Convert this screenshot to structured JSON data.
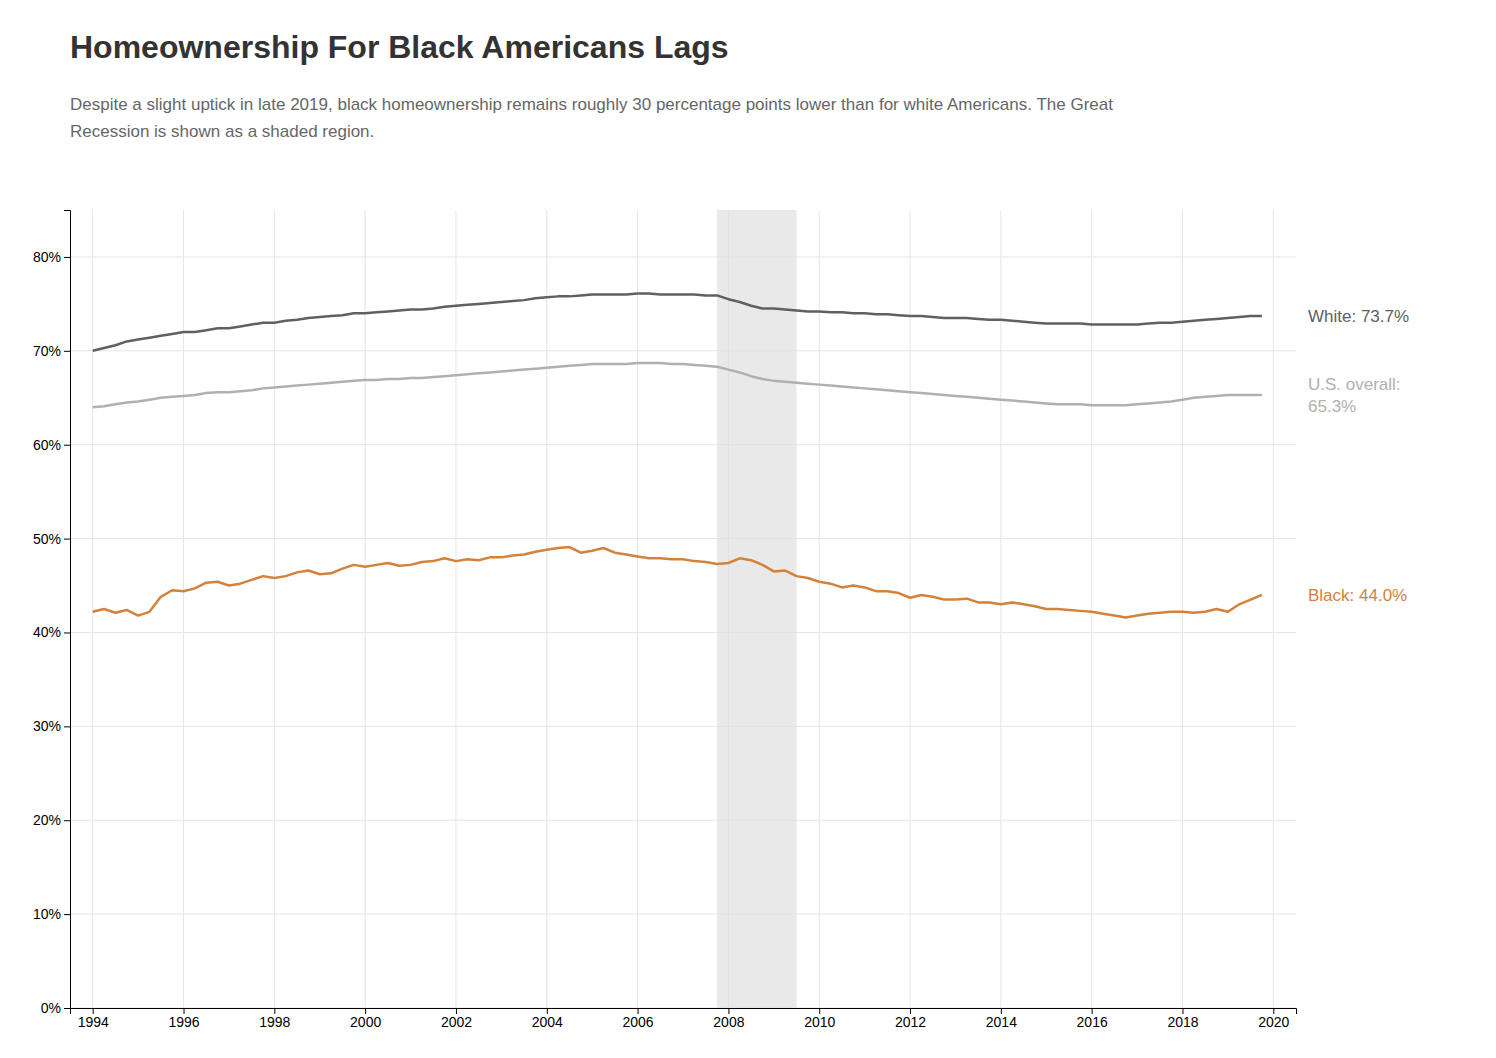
{
  "chart_data": {
    "type": "line",
    "title": "Homeownership For Black Americans Lags",
    "subtitle": "Despite a slight uptick in late 2019, black homeownership remains roughly 30 percentage points lower than for white Americans. The Great\nRecession is shown as a shaded region.",
    "xlim": [
      1993.5,
      2020.5
    ],
    "xticks": [
      1994,
      1996,
      1998,
      2000,
      2002,
      2004,
      2006,
      2008,
      2010,
      2012,
      2014,
      2016,
      2018,
      2020
    ],
    "ylim": [
      0,
      0.85
    ],
    "yticks": [
      {
        "value": 0,
        "label": "0%"
      },
      {
        "value": 0.1,
        "label": "10%"
      },
      {
        "value": 0.2,
        "label": "20%"
      },
      {
        "value": 0.3,
        "label": "30%"
      },
      {
        "value": 0.4,
        "label": "40%"
      },
      {
        "value": 0.5,
        "label": "50%"
      },
      {
        "value": 0.6,
        "label": "60%"
      },
      {
        "value": 0.7,
        "label": "70%"
      },
      {
        "value": 0.8,
        "label": "80%"
      }
    ],
    "grid": true,
    "shaded_regions": [
      {
        "x0": 2007.75,
        "x1": 2009.5,
        "color": "#e0e0e0"
      }
    ],
    "x": [
      1994.0,
      1994.25,
      1994.5,
      1994.75,
      1995.0,
      1995.25,
      1995.5,
      1995.75,
      1996.0,
      1996.25,
      1996.5,
      1996.75,
      1997.0,
      1997.25,
      1997.5,
      1997.75,
      1998.0,
      1998.25,
      1998.5,
      1998.75,
      1999.0,
      1999.25,
      1999.5,
      1999.75,
      2000.0,
      2000.25,
      2000.5,
      2000.75,
      2001.0,
      2001.25,
      2001.5,
      2001.75,
      2002.0,
      2002.25,
      2002.5,
      2002.75,
      2003.0,
      2003.25,
      2003.5,
      2003.75,
      2004.0,
      2004.25,
      2004.5,
      2004.75,
      2005.0,
      2005.25,
      2005.5,
      2005.75,
      2006.0,
      2006.25,
      2006.5,
      2006.75,
      2007.0,
      2007.25,
      2007.5,
      2007.75,
      2008.0,
      2008.25,
      2008.5,
      2008.75,
      2009.0,
      2009.25,
      2009.5,
      2009.75,
      2010.0,
      2010.25,
      2010.5,
      2010.75,
      2011.0,
      2011.25,
      2011.5,
      2011.75,
      2012.0,
      2012.25,
      2012.5,
      2012.75,
      2013.0,
      2013.25,
      2013.5,
      2013.75,
      2014.0,
      2014.25,
      2014.5,
      2014.75,
      2015.0,
      2015.25,
      2015.5,
      2015.75,
      2016.0,
      2016.25,
      2016.5,
      2016.75,
      2017.0,
      2017.25,
      2017.5,
      2017.75,
      2018.0,
      2018.25,
      2018.5,
      2018.75,
      2019.0,
      2019.25,
      2019.5,
      2019.75
    ],
    "series": [
      {
        "name": "White: 73.7%",
        "color": "#606060",
        "values": [
          0.7,
          0.703,
          0.706,
          0.71,
          0.712,
          0.714,
          0.716,
          0.718,
          0.72,
          0.72,
          0.722,
          0.724,
          0.724,
          0.726,
          0.728,
          0.73,
          0.73,
          0.732,
          0.733,
          0.735,
          0.736,
          0.737,
          0.738,
          0.74,
          0.74,
          0.741,
          0.742,
          0.743,
          0.744,
          0.744,
          0.745,
          0.747,
          0.748,
          0.749,
          0.75,
          0.751,
          0.752,
          0.753,
          0.754,
          0.756,
          0.757,
          0.758,
          0.758,
          0.759,
          0.76,
          0.76,
          0.76,
          0.76,
          0.761,
          0.761,
          0.76,
          0.76,
          0.76,
          0.76,
          0.759,
          0.759,
          0.755,
          0.752,
          0.748,
          0.745,
          0.745,
          0.744,
          0.743,
          0.742,
          0.742,
          0.741,
          0.741,
          0.74,
          0.74,
          0.739,
          0.739,
          0.738,
          0.737,
          0.737,
          0.736,
          0.735,
          0.735,
          0.735,
          0.734,
          0.733,
          0.733,
          0.732,
          0.731,
          0.73,
          0.729,
          0.729,
          0.729,
          0.729,
          0.728,
          0.728,
          0.728,
          0.728,
          0.728,
          0.729,
          0.73,
          0.73,
          0.731,
          0.732,
          0.733,
          0.734,
          0.735,
          0.736,
          0.737,
          0.737
        ]
      },
      {
        "name": "U.S. overall:\n65.3%",
        "color": "#b0b0b0",
        "values": [
          0.64,
          0.641,
          0.643,
          0.645,
          0.646,
          0.648,
          0.65,
          0.651,
          0.652,
          0.653,
          0.655,
          0.656,
          0.656,
          0.657,
          0.658,
          0.66,
          0.661,
          0.662,
          0.663,
          0.664,
          0.665,
          0.666,
          0.667,
          0.668,
          0.669,
          0.669,
          0.67,
          0.67,
          0.671,
          0.671,
          0.672,
          0.673,
          0.674,
          0.675,
          0.676,
          0.677,
          0.678,
          0.679,
          0.68,
          0.681,
          0.682,
          0.683,
          0.684,
          0.685,
          0.686,
          0.686,
          0.686,
          0.686,
          0.687,
          0.687,
          0.687,
          0.686,
          0.686,
          0.685,
          0.684,
          0.683,
          0.68,
          0.677,
          0.673,
          0.67,
          0.668,
          0.667,
          0.666,
          0.665,
          0.664,
          0.663,
          0.662,
          0.661,
          0.66,
          0.659,
          0.658,
          0.657,
          0.656,
          0.655,
          0.654,
          0.653,
          0.652,
          0.651,
          0.65,
          0.649,
          0.648,
          0.647,
          0.646,
          0.645,
          0.644,
          0.643,
          0.643,
          0.643,
          0.642,
          0.642,
          0.642,
          0.642,
          0.643,
          0.644,
          0.645,
          0.646,
          0.648,
          0.65,
          0.651,
          0.652,
          0.653,
          0.653,
          0.653,
          0.653
        ]
      },
      {
        "name": "Black: 44.0%",
        "color": "#d4813a",
        "values": [
          0.422,
          0.425,
          0.421,
          0.424,
          0.418,
          0.422,
          0.438,
          0.445,
          0.444,
          0.447,
          0.453,
          0.454,
          0.45,
          0.452,
          0.456,
          0.46,
          0.458,
          0.46,
          0.464,
          0.466,
          0.462,
          0.463,
          0.468,
          0.472,
          0.47,
          0.472,
          0.474,
          0.471,
          0.472,
          0.475,
          0.476,
          0.479,
          0.476,
          0.478,
          0.477,
          0.48,
          0.48,
          0.482,
          0.483,
          0.486,
          0.488,
          0.49,
          0.491,
          0.485,
          0.487,
          0.49,
          0.485,
          0.483,
          0.481,
          0.479,
          0.479,
          0.478,
          0.478,
          0.476,
          0.475,
          0.473,
          0.474,
          0.479,
          0.477,
          0.472,
          0.465,
          0.466,
          0.46,
          0.458,
          0.454,
          0.452,
          0.448,
          0.45,
          0.448,
          0.444,
          0.444,
          0.442,
          0.437,
          0.44,
          0.438,
          0.435,
          0.435,
          0.436,
          0.432,
          0.432,
          0.43,
          0.432,
          0.43,
          0.428,
          0.425,
          0.425,
          0.424,
          0.423,
          0.422,
          0.42,
          0.418,
          0.416,
          0.418,
          0.42,
          0.421,
          0.422,
          0.422,
          0.421,
          0.422,
          0.425,
          0.422,
          0.43,
          0.435,
          0.44
        ]
      }
    ]
  }
}
